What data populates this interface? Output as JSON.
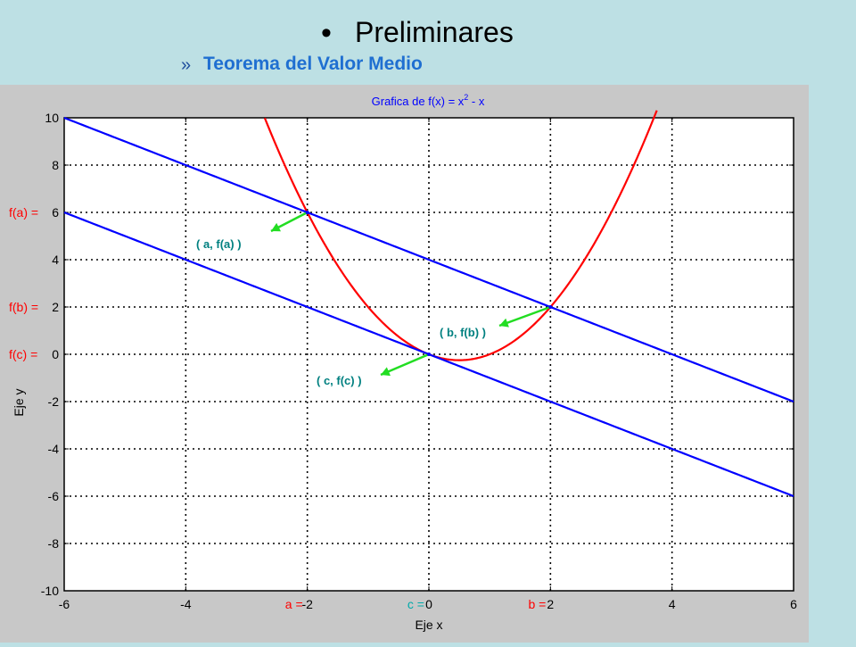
{
  "slide": {
    "bullet": "•",
    "title": "Preliminares",
    "subtitle_marker": "»",
    "subtitle": "Teorema del Valor Medio"
  },
  "chart_data": {
    "type": "line",
    "title": "Grafica de f(x) = x",
    "title_exponent": "2",
    "title_tail": " - x",
    "xlabel": "Eje x",
    "ylabel": "Eje y",
    "xlim": [
      -6,
      6
    ],
    "ylim": [
      -10,
      10
    ],
    "xticks": [
      -6,
      -4,
      -2,
      0,
      2,
      4,
      6
    ],
    "yticks": [
      -10,
      -8,
      -6,
      -4,
      -2,
      0,
      2,
      4,
      6,
      8,
      10
    ],
    "grid": true,
    "series": [
      {
        "function": "f(x) = x^2 - x",
        "color": "#ff0000",
        "x_range": [
          -2.7,
          3.75
        ]
      },
      {
        "function": "y = -x + 4",
        "color": "#0000ff",
        "x_range": [
          -6,
          6
        ]
      },
      {
        "function": "y = -x",
        "color": "#0000ff",
        "x_range": [
          -6,
          6
        ]
      }
    ],
    "points": [
      {
        "x": -2,
        "y": 6,
        "label": "( a, f(a) )"
      },
      {
        "x": 2,
        "y": 2,
        "label": "( b, f(b) )"
      },
      {
        "x": 0,
        "y": 0,
        "label": "( c, f(c) )"
      }
    ],
    "y_annotations": [
      {
        "y": 6,
        "text": "f(a) ="
      },
      {
        "y": 2,
        "text": "f(b) ="
      },
      {
        "y": 0,
        "text": "f(c) ="
      }
    ],
    "x_annotations": [
      {
        "x": -2,
        "text": "a =",
        "color": "#ff0000"
      },
      {
        "x": 0,
        "text": "c =",
        "color": "#00aaaa"
      },
      {
        "x": 2,
        "text": "b =",
        "color": "#ff0000"
      }
    ],
    "colors": {
      "curve": "#ff0000",
      "lines": "#0000ff",
      "arrows": "#22dd22",
      "point_labels": "#008080",
      "title": "#0000ff",
      "annotations": "#ff0000"
    }
  }
}
